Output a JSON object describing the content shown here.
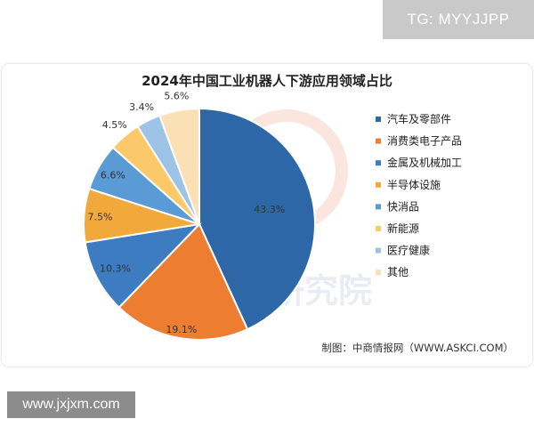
{
  "watermark_top": "TG: MYYJJPP",
  "watermark_bottom": "www.jxjxm.com",
  "background_watermark": "中商产业研究院",
  "chart_data": {
    "type": "pie",
    "title": "2024年中国工业机器人下游应用领域占比",
    "source": "制图：中商情报网（WWW.ASKCI.COM）",
    "unit": "%",
    "slices": [
      {
        "label": "汽车及零部件",
        "value": 43.3,
        "color": "#2e67a7"
      },
      {
        "label": "消费类电子产品",
        "value": 19.1,
        "color": "#ed7d31"
      },
      {
        "label": "金属及机械加工",
        "value": 10.3,
        "color": "#3d7cc0"
      },
      {
        "label": "半导体设施",
        "value": 7.5,
        "color": "#f2a93b"
      },
      {
        "label": "快消品",
        "value": 6.6,
        "color": "#5b9bd5"
      },
      {
        "label": "新能源",
        "value": 4.5,
        "color": "#fbc86a"
      },
      {
        "label": "医疗健康",
        "value": 3.4,
        "color": "#9dc3e6"
      },
      {
        "label": "其他",
        "value": 5.6,
        "color": "#fae0b4"
      }
    ],
    "data_labels": [
      "43.3%",
      "19.1%",
      "10.3%",
      "7.5%",
      "6.6%",
      "4.5%",
      "3.4%",
      "5.6%"
    ],
    "legend_position": "right"
  }
}
